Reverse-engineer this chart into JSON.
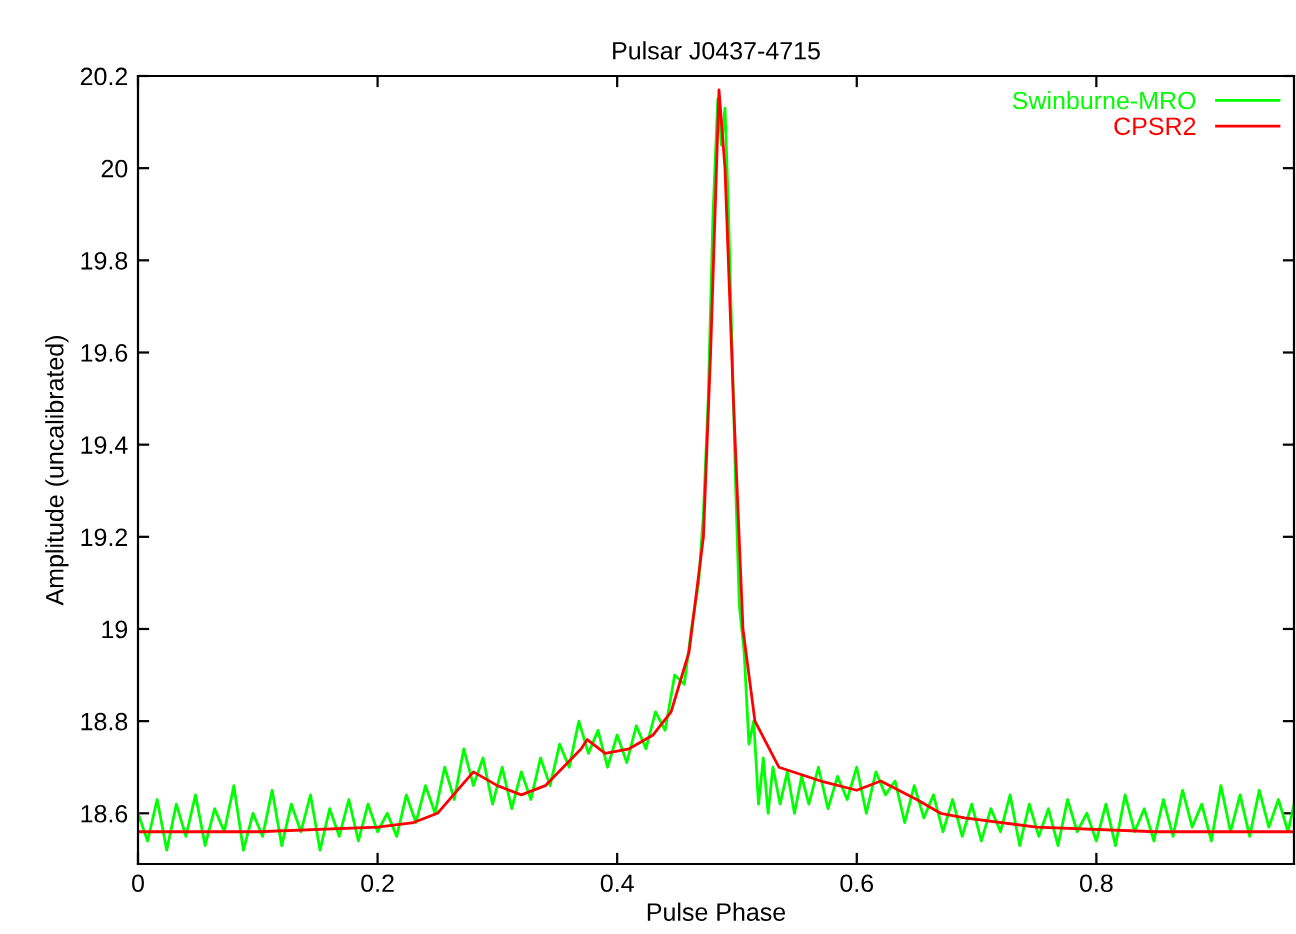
{
  "chart_data": {
    "type": "line",
    "title": "Pulsar J0437-4715",
    "xlabel": "Pulse Phase",
    "ylabel": "Amplitude (uncalibrated)",
    "xlim": [
      0,
      0.965
    ],
    "ylim": [
      18.49,
      20.2
    ],
    "xticks": [
      0,
      0.2,
      0.4,
      0.6,
      0.8
    ],
    "yticks": [
      18.6,
      18.8,
      19,
      19.2,
      19.4,
      19.6,
      19.8,
      20,
      20.2
    ],
    "grid": false,
    "legend": "top right",
    "line_style": "solid",
    "marker": "none",
    "series": [
      {
        "name": "Swinburne-MRO",
        "color": "#00ff00",
        "x": [
          0.0,
          0.008,
          0.016,
          0.024,
          0.032,
          0.04,
          0.048,
          0.056,
          0.064,
          0.072,
          0.08,
          0.088,
          0.096,
          0.104,
          0.112,
          0.12,
          0.128,
          0.136,
          0.144,
          0.152,
          0.16,
          0.168,
          0.176,
          0.184,
          0.192,
          0.2,
          0.208,
          0.216,
          0.224,
          0.232,
          0.24,
          0.248,
          0.256,
          0.264,
          0.272,
          0.28,
          0.288,
          0.296,
          0.304,
          0.312,
          0.32,
          0.328,
          0.336,
          0.344,
          0.352,
          0.36,
          0.368,
          0.376,
          0.384,
          0.392,
          0.4,
          0.408,
          0.416,
          0.424,
          0.432,
          0.44,
          0.448,
          0.456,
          0.462,
          0.468,
          0.472,
          0.476,
          0.48,
          0.484,
          0.487,
          0.49,
          0.493,
          0.496,
          0.499,
          0.502,
          0.506,
          0.51,
          0.514,
          0.518,
          0.522,
          0.526,
          0.53,
          0.536,
          0.542,
          0.548,
          0.554,
          0.56,
          0.568,
          0.576,
          0.584,
          0.592,
          0.6,
          0.608,
          0.616,
          0.624,
          0.632,
          0.64,
          0.648,
          0.656,
          0.664,
          0.672,
          0.68,
          0.688,
          0.696,
          0.704,
          0.712,
          0.72,
          0.728,
          0.736,
          0.744,
          0.752,
          0.76,
          0.768,
          0.776,
          0.784,
          0.792,
          0.8,
          0.808,
          0.816,
          0.824,
          0.832,
          0.84,
          0.848,
          0.856,
          0.864,
          0.872,
          0.88,
          0.888,
          0.896,
          0.904,
          0.912,
          0.92,
          0.928,
          0.936,
          0.944,
          0.952,
          0.96,
          0.965
        ],
        "values": [
          18.6,
          18.54,
          18.63,
          18.52,
          18.62,
          18.55,
          18.64,
          18.53,
          18.61,
          18.56,
          18.66,
          18.52,
          18.6,
          18.55,
          18.65,
          18.53,
          18.62,
          18.56,
          18.64,
          18.52,
          18.61,
          18.55,
          18.63,
          18.54,
          18.62,
          18.56,
          18.6,
          18.55,
          18.64,
          18.58,
          18.66,
          18.6,
          18.7,
          18.63,
          18.74,
          18.66,
          18.72,
          18.62,
          18.7,
          18.61,
          18.69,
          18.63,
          18.72,
          18.66,
          18.75,
          18.7,
          18.8,
          18.73,
          18.78,
          18.7,
          18.77,
          18.71,
          18.79,
          18.74,
          18.82,
          18.78,
          18.9,
          18.88,
          19.0,
          19.1,
          19.25,
          19.5,
          19.9,
          20.15,
          20.05,
          20.13,
          19.9,
          19.6,
          19.3,
          19.05,
          18.95,
          18.75,
          18.8,
          18.62,
          18.72,
          18.6,
          18.7,
          18.62,
          18.69,
          18.6,
          18.68,
          18.62,
          18.7,
          18.61,
          18.68,
          18.63,
          18.7,
          18.6,
          18.69,
          18.64,
          18.67,
          18.58,
          18.66,
          18.59,
          18.64,
          18.56,
          18.63,
          18.55,
          18.62,
          18.54,
          18.61,
          18.56,
          18.64,
          18.53,
          18.62,
          18.55,
          18.61,
          18.53,
          18.63,
          18.56,
          18.6,
          18.54,
          18.62,
          18.53,
          18.64,
          18.56,
          18.61,
          18.54,
          18.63,
          18.55,
          18.65,
          18.57,
          18.62,
          18.54,
          18.66,
          18.56,
          18.64,
          18.55,
          18.65,
          18.57,
          18.63,
          18.56,
          18.62
        ]
      },
      {
        "name": "CPSR2",
        "color": "#ff0000",
        "x": [
          0,
          0.1,
          0.2,
          0.23,
          0.25,
          0.27,
          0.28,
          0.3,
          0.32,
          0.34,
          0.37,
          0.375,
          0.39,
          0.41,
          0.43,
          0.445,
          0.46,
          0.472,
          0.478,
          0.485,
          0.49,
          0.497,
          0.505,
          0.515,
          0.535,
          0.57,
          0.6,
          0.62,
          0.65,
          0.67,
          0.69,
          0.75,
          0.85,
          0.965
        ],
        "values": [
          18.56,
          18.56,
          18.57,
          18.58,
          18.6,
          18.66,
          18.69,
          18.66,
          18.64,
          18.66,
          18.74,
          18.76,
          18.73,
          18.74,
          18.77,
          18.82,
          18.95,
          19.2,
          19.6,
          20.17,
          20.0,
          19.5,
          19.0,
          18.8,
          18.7,
          18.67,
          18.65,
          18.67,
          18.63,
          18.6,
          18.59,
          18.57,
          18.56,
          18.56
        ]
      }
    ]
  }
}
